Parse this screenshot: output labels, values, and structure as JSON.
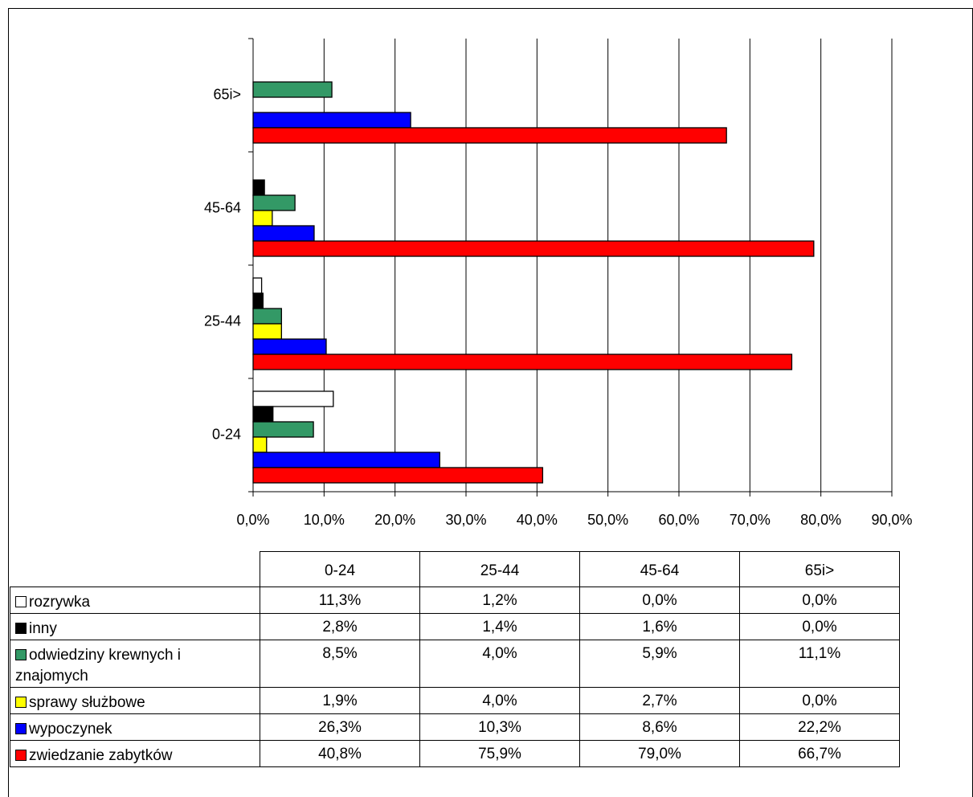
{
  "chart_data": {
    "type": "bar",
    "orientation": "horizontal",
    "categories": [
      "0-24",
      "25-44",
      "45-64",
      "65i>"
    ],
    "series": [
      {
        "name": "rozrywka",
        "color": "#ffffff",
        "values": [
          11.3,
          1.2,
          0.0,
          0.0
        ],
        "value_labels": [
          "11,3%",
          "1,2%",
          "0,0%",
          "0,0%"
        ]
      },
      {
        "name": "inny",
        "color": "#000000",
        "values": [
          2.8,
          1.4,
          1.6,
          0.0
        ],
        "value_labels": [
          "2,8%",
          "1,4%",
          "1,6%",
          "0,0%"
        ]
      },
      {
        "name": "odwiedziny krewnych i znajomych",
        "color": "#339966",
        "values": [
          8.5,
          4.0,
          5.9,
          11.1
        ],
        "value_labels": [
          "8,5%",
          "4,0%",
          "5,9%",
          "11,1%"
        ]
      },
      {
        "name": "sprawy służbowe",
        "color": "#ffff00",
        "values": [
          1.9,
          4.0,
          2.7,
          0.0
        ],
        "value_labels": [
          "1,9%",
          "4,0%",
          "2,7%",
          "0,0%"
        ]
      },
      {
        "name": "wypoczynek",
        "color": "#0000ff",
        "values": [
          26.3,
          10.3,
          8.6,
          22.2
        ],
        "value_labels": [
          "26,3%",
          "10,3%",
          "8,6%",
          "22,2%"
        ]
      },
      {
        "name": "zwiedzanie zabytków",
        "color": "#ff0000",
        "values": [
          40.8,
          75.9,
          79.0,
          66.7
        ],
        "value_labels": [
          "40,8%",
          "75,9%",
          "79,0%",
          "66,7%"
        ]
      }
    ],
    "xlim": [
      0,
      90
    ],
    "xticks": [
      {
        "value": 0,
        "label": "0,0%"
      },
      {
        "value": 10,
        "label": "10,0%"
      },
      {
        "value": 20,
        "label": "20,0%"
      },
      {
        "value": 30,
        "label": "30,0%"
      },
      {
        "value": 40,
        "label": "40,0%"
      },
      {
        "value": 50,
        "label": "50,0%"
      },
      {
        "value": 60,
        "label": "60,0%"
      },
      {
        "value": 70,
        "label": "70,0%"
      },
      {
        "value": 80,
        "label": "80,0%"
      },
      {
        "value": 90,
        "label": "90,0%"
      }
    ],
    "grid": true
  }
}
